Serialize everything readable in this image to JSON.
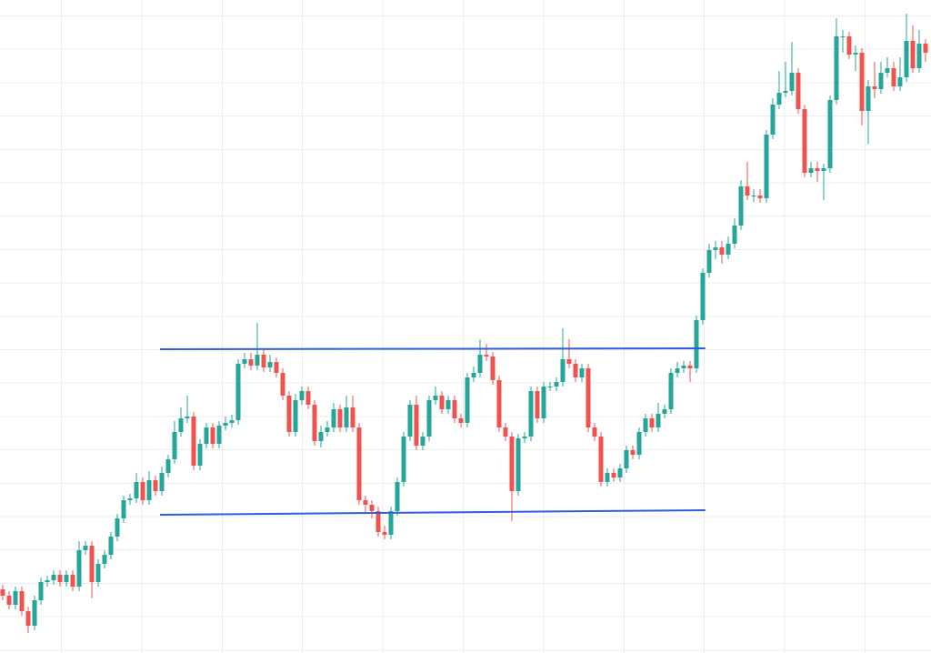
{
  "chart_data": {
    "type": "candlestick",
    "up_color": "#26a69a",
    "down_color": "#ef5350",
    "xlim": [
      -0.43,
      145.86
    ],
    "ylim": [
      0,
      718
    ],
    "open": [
      70,
      63,
      53,
      68,
      46,
      30,
      58,
      78,
      80,
      86,
      78,
      86,
      73,
      113,
      118,
      78,
      98,
      108,
      128,
      148,
      168,
      170,
      188,
      168,
      190,
      178,
      198,
      213,
      243,
      258,
      260,
      206,
      230,
      248,
      230,
      250,
      253,
      256,
      318,
      323,
      316,
      328,
      314,
      320,
      308,
      283,
      243,
      278,
      288,
      273,
      233,
      243,
      248,
      268,
      248,
      270,
      248,
      168,
      163,
      156,
      133,
      130,
      156,
      188,
      238,
      273,
      228,
      238,
      278,
      283,
      268,
      278,
      258,
      253,
      303,
      308,
      328,
      326,
      300,
      248,
      238,
      178,
      236,
      238,
      288,
      258,
      293,
      293,
      298,
      323,
      318,
      303,
      313,
      248,
      238,
      188,
      198,
      193,
      203,
      223,
      218,
      243,
      258,
      248,
      263,
      268,
      308,
      313,
      316,
      313,
      366,
      418,
      443,
      446,
      438,
      450,
      470,
      513,
      503,
      503,
      500,
      570,
      603,
      616,
      618,
      638,
      598,
      528,
      533,
      530,
      533,
      608,
      678,
      678,
      658,
      660,
      596,
      623,
      620,
      638,
      643,
      623,
      633,
      673,
      643,
      670
    ],
    "high": [
      75,
      68,
      73,
      73,
      51,
      63,
      83,
      85,
      91,
      91,
      91,
      91,
      123,
      123,
      123,
      103,
      113,
      133,
      153,
      173,
      175,
      198,
      193,
      200,
      195,
      205,
      218,
      255,
      270,
      283,
      265,
      235,
      253,
      253,
      255,
      260,
      262,
      323,
      330,
      330,
      363,
      335,
      328,
      325,
      313,
      288,
      285,
      293,
      293,
      278,
      250,
      255,
      275,
      273,
      283,
      283,
      253,
      173,
      168,
      161,
      140,
      161,
      193,
      243,
      278,
      283,
      243,
      283,
      293,
      288,
      283,
      283,
      263,
      308,
      315,
      345,
      340,
      331,
      305,
      253,
      243,
      241,
      243,
      293,
      293,
      298,
      298,
      303,
      357,
      345,
      323,
      318,
      318,
      253,
      243,
      203,
      203,
      208,
      228,
      228,
      248,
      263,
      263,
      275,
      273,
      313,
      320,
      321,
      321,
      371,
      423,
      450,
      453,
      453,
      458,
      478,
      520,
      540,
      510,
      510,
      575,
      610,
      640,
      650,
      672,
      643,
      603,
      540,
      540,
      538,
      613,
      698,
      685,
      683,
      668,
      665,
      630,
      650,
      650,
      655,
      650,
      655,
      703,
      690,
      685,
      675
    ],
    "low": [
      58,
      48,
      48,
      41,
      22,
      25,
      53,
      73,
      75,
      73,
      73,
      68,
      68,
      108,
      60,
      73,
      93,
      103,
      123,
      143,
      163,
      165,
      163,
      163,
      173,
      173,
      193,
      208,
      238,
      253,
      201,
      201,
      225,
      225,
      225,
      245,
      248,
      251,
      313,
      311,
      311,
      309,
      309,
      303,
      278,
      238,
      238,
      273,
      268,
      228,
      226,
      238,
      243,
      243,
      243,
      243,
      163,
      155,
      148,
      128,
      125,
      125,
      151,
      183,
      233,
      223,
      223,
      233,
      273,
      263,
      263,
      253,
      248,
      248,
      298,
      303,
      321,
      295,
      243,
      233,
      145,
      173,
      231,
      233,
      253,
      253,
      288,
      288,
      293,
      313,
      298,
      298,
      243,
      233,
      183,
      183,
      188,
      188,
      198,
      213,
      213,
      238,
      243,
      243,
      258,
      263,
      303,
      308,
      298,
      308,
      361,
      413,
      433,
      428,
      433,
      445,
      465,
      498,
      496,
      495,
      495,
      565,
      598,
      611,
      613,
      593,
      523,
      523,
      518,
      498,
      528,
      603,
      660,
      653,
      640,
      580,
      560,
      610,
      615,
      633,
      618,
      618,
      628,
      638,
      638,
      650
    ],
    "close": [
      63,
      53,
      68,
      46,
      30,
      58,
      78,
      80,
      86,
      78,
      86,
      73,
      113,
      118,
      78,
      98,
      108,
      128,
      148,
      168,
      170,
      188,
      168,
      190,
      178,
      198,
      213,
      243,
      258,
      260,
      206,
      230,
      248,
      230,
      250,
      253,
      256,
      318,
      323,
      316,
      328,
      314,
      320,
      308,
      283,
      243,
      278,
      288,
      273,
      233,
      243,
      248,
      268,
      248,
      270,
      248,
      168,
      163,
      156,
      133,
      130,
      156,
      188,
      238,
      273,
      228,
      238,
      278,
      283,
      268,
      278,
      258,
      253,
      303,
      308,
      328,
      326,
      300,
      248,
      238,
      178,
      236,
      238,
      288,
      258,
      293,
      293,
      298,
      323,
      318,
      303,
      313,
      248,
      238,
      188,
      198,
      193,
      203,
      223,
      218,
      243,
      258,
      248,
      263,
      268,
      308,
      313,
      316,
      313,
      366,
      418,
      443,
      446,
      438,
      450,
      470,
      513,
      503,
      503,
      500,
      570,
      603,
      616,
      618,
      638,
      598,
      528,
      533,
      530,
      533,
      608,
      678,
      678,
      658,
      660,
      596,
      623,
      620,
      638,
      643,
      623,
      633,
      673,
      643,
      670,
      660
    ],
    "lines": [
      {
        "color": "#2f5fdc",
        "x": [
          24.7,
          110.4
        ],
        "y": [
          334,
          335
        ]
      },
      {
        "color": "#2f5fdc",
        "x": [
          24.7,
          110.4
        ],
        "y": [
          152,
          157
        ]
      }
    ]
  }
}
